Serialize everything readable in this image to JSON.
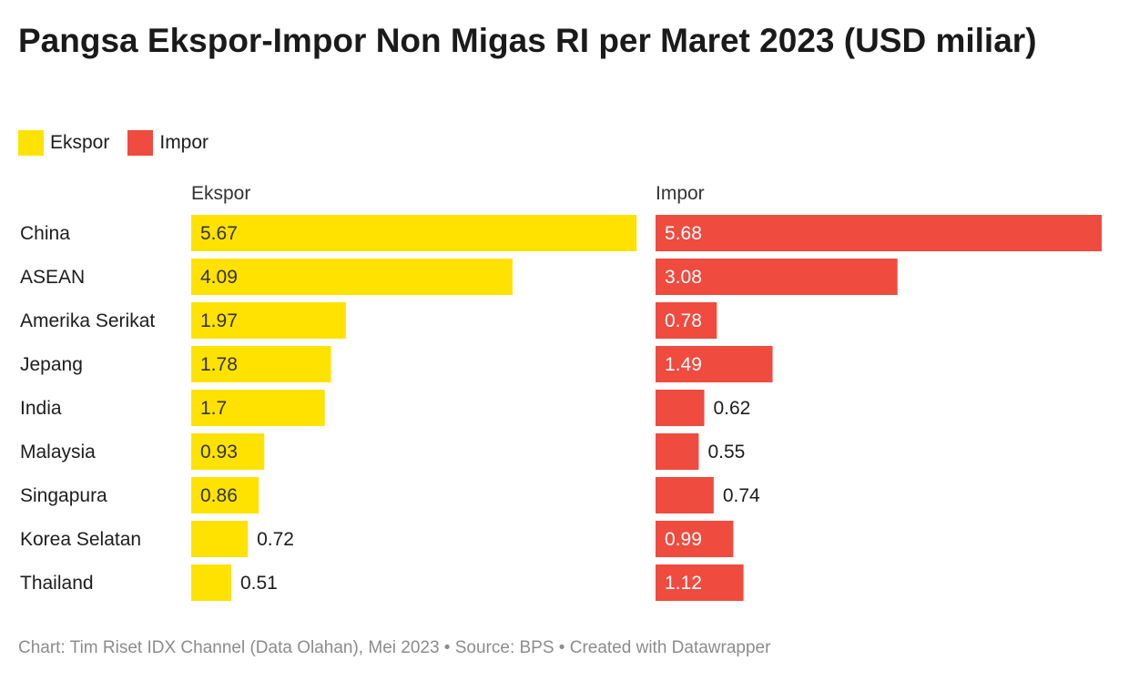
{
  "title": "Pangsa Ekspor-Impor Non Migas RI per Maret 2023 (USD miliar)",
  "legend": [
    {
      "label": "Ekspor",
      "color": "#ffe200"
    },
    {
      "label": "Impor",
      "color": "#ef4b3f"
    }
  ],
  "footer": "Chart: Tim Riset IDX Channel (Data Olahan), Mei 2023 • Source: BPS • Created with Datawrapper",
  "chart_data": {
    "type": "bar",
    "orientation": "horizontal",
    "layout": "split-bars",
    "categories": [
      "China",
      "ASEAN",
      "Amerika Serikat",
      "Jepang",
      "India",
      "Malaysia",
      "Singapura",
      "Korea Selatan",
      "Thailand"
    ],
    "series": [
      {
        "name": "Ekspor",
        "color": "#ffe200",
        "values": [
          5.67,
          4.09,
          1.97,
          1.78,
          1.7,
          0.93,
          0.86,
          0.72,
          0.51
        ]
      },
      {
        "name": "Impor",
        "color": "#ef4b3f",
        "values": [
          5.68,
          3.08,
          0.78,
          1.49,
          0.62,
          0.55,
          0.74,
          0.99,
          1.12
        ]
      }
    ],
    "xlim": [
      0,
      5.68
    ],
    "grid": false,
    "legend_position": "top-left"
  }
}
